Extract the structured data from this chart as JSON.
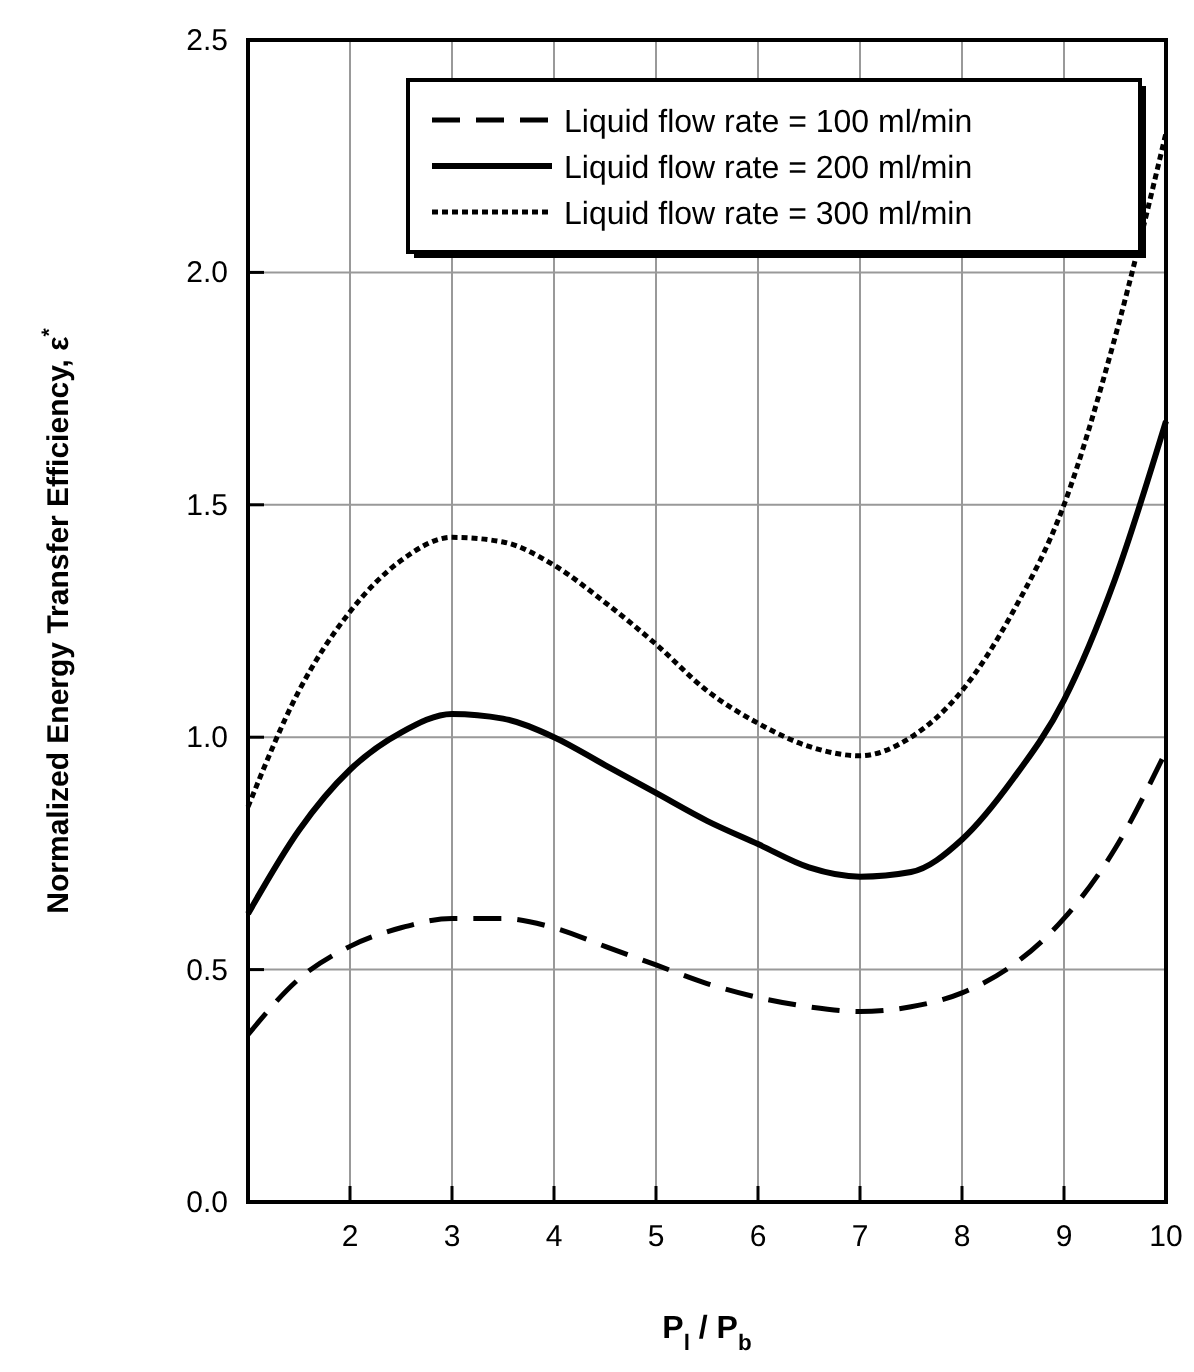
{
  "chart_data": {
    "type": "line",
    "xlabel": "P$_{l}$ / P$_{b}$",
    "ylabel": "Normalized  Energy  Transfer  Efficiency,  ε$^{*}$",
    "x": [
      1,
      1.5,
      2,
      2.5,
      3,
      3.5,
      4,
      4.5,
      5,
      5.5,
      6,
      6.5,
      7,
      7.5,
      8,
      8.5,
      9,
      9.5,
      10
    ],
    "xlim": [
      1,
      10
    ],
    "xticks": [
      2,
      3,
      4,
      5,
      6,
      7,
      8,
      9,
      10
    ],
    "ylim": [
      0,
      2.5
    ],
    "yticks": [
      {
        "value": 0,
        "label": "0.0"
      },
      {
        "value": 0.5,
        "label": "0.5"
      },
      {
        "value": 1,
        "label": "1.0"
      },
      {
        "value": 1.5,
        "label": "1.5"
      },
      {
        "value": 2,
        "label": "2.0"
      },
      {
        "value": 2.5,
        "label": "2.5"
      }
    ],
    "grid": true,
    "legend": "top",
    "series": [
      {
        "name": "Liquid flow rate = 100 ml/min",
        "color": "#000000",
        "line_style": "dashed",
        "values": [
          0.36,
          0.48,
          0.55,
          0.59,
          0.61,
          0.61,
          0.59,
          0.55,
          0.51,
          0.47,
          0.44,
          0.42,
          0.41,
          0.42,
          0.45,
          0.51,
          0.61,
          0.76,
          0.97
        ]
      },
      {
        "name": "Liquid flow rate = 200 ml/min",
        "color": "#000000",
        "line_style": "solid",
        "values": [
          0.62,
          0.8,
          0.93,
          1.01,
          1.05,
          1.04,
          1.0,
          0.94,
          0.88,
          0.82,
          0.77,
          0.72,
          0.7,
          0.71,
          0.78,
          0.91,
          1.08,
          1.34,
          1.68
        ]
      },
      {
        "name": "Liquid flow rate = 300 ml/min",
        "color": "#000000",
        "line_style": "dotted",
        "values": [
          0.85,
          1.1,
          1.27,
          1.38,
          1.43,
          1.42,
          1.37,
          1.29,
          1.2,
          1.1,
          1.03,
          0.98,
          0.96,
          1.0,
          1.1,
          1.27,
          1.5,
          1.86,
          2.3
        ]
      }
    ]
  }
}
